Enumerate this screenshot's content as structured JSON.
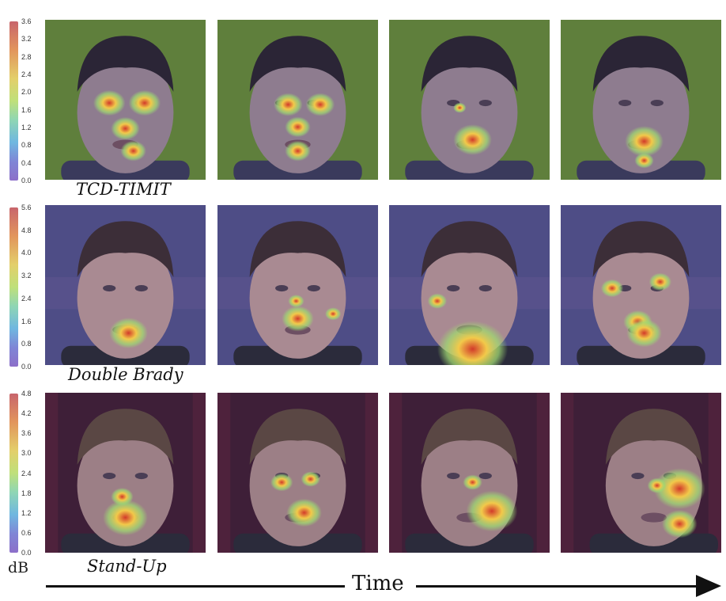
{
  "colorbars": [
    {
      "ticks": [
        "3.6",
        "3.2",
        "2.8",
        "2.4",
        "2.0",
        "1.6",
        "1.2",
        "0.8",
        "0.4",
        "0.0"
      ]
    },
    {
      "ticks": [
        "5.6",
        "4.8",
        "4.0",
        "3.2",
        "2.4",
        "1.6",
        "0.8",
        "0.0"
      ]
    },
    {
      "ticks": [
        "4.8",
        "4.2",
        "3.6",
        "3.0",
        "2.4",
        "1.8",
        "1.2",
        "0.6",
        "0.0"
      ]
    }
  ],
  "rows": [
    {
      "label": "TCD-TIMIT",
      "bg": "#5f7f3c",
      "skin": "#8e7c8f",
      "hair": "#2b2536"
    },
    {
      "label": "Double Brady",
      "bg": "#4e4d86",
      "skin": "#a98a92",
      "hair": "#3c2e38"
    },
    {
      "label": "Stand-Up",
      "bg": "#3e1f38",
      "skin": "#9c7f86",
      "hair": "#5a4744"
    }
  ],
  "unit_label": "dB",
  "time_label": "Time"
}
